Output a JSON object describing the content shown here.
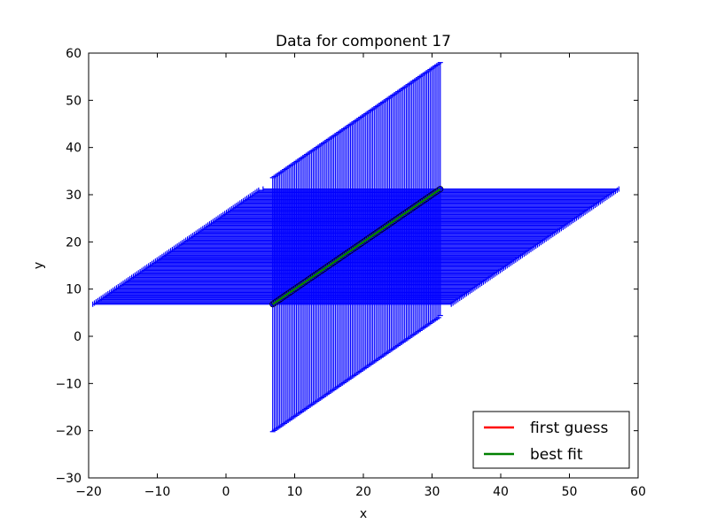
{
  "chart_data": {
    "type": "scatter",
    "title": "Data for component 17",
    "xlabel": "x",
    "ylabel": "y",
    "xlim": [
      -20,
      60
    ],
    "ylim": [
      -30,
      60
    ],
    "xticks": [
      -20,
      -10,
      0,
      10,
      20,
      30,
      40,
      50,
      60
    ],
    "yticks": [
      -30,
      -20,
      -10,
      0,
      10,
      20,
      30,
      40,
      50,
      60
    ],
    "grid": false,
    "legend_position": "lower-right",
    "series": [
      {
        "name": "data",
        "style": "errorbar",
        "color": "#0000ff",
        "x_start": 6.8,
        "x_end": 31.2,
        "n_points": 100,
        "yerr_low": 27.0,
        "yerr_high": 26.8,
        "xerr_low": 26.2,
        "xerr_high": 26.0,
        "last_point": {
          "x": 31.2,
          "y": 31.2,
          "xerr_low": 25.8,
          "xerr_high": 26.0,
          "yerr_low": 26.8,
          "yerr_high": 26.8
        }
      },
      {
        "name": "first guess",
        "style": "line",
        "color": "#ff0000",
        "x": [
          6.8,
          31.2
        ],
        "y": [
          6.8,
          31.2
        ]
      },
      {
        "name": "best fit",
        "style": "line",
        "color": "#008000",
        "x": [
          6.8,
          31.2
        ],
        "y": [
          6.8,
          31.2
        ]
      }
    ],
    "legend": [
      {
        "label": "first guess",
        "color": "#ff0000"
      },
      {
        "label": "best fit",
        "color": "#008000"
      }
    ]
  }
}
